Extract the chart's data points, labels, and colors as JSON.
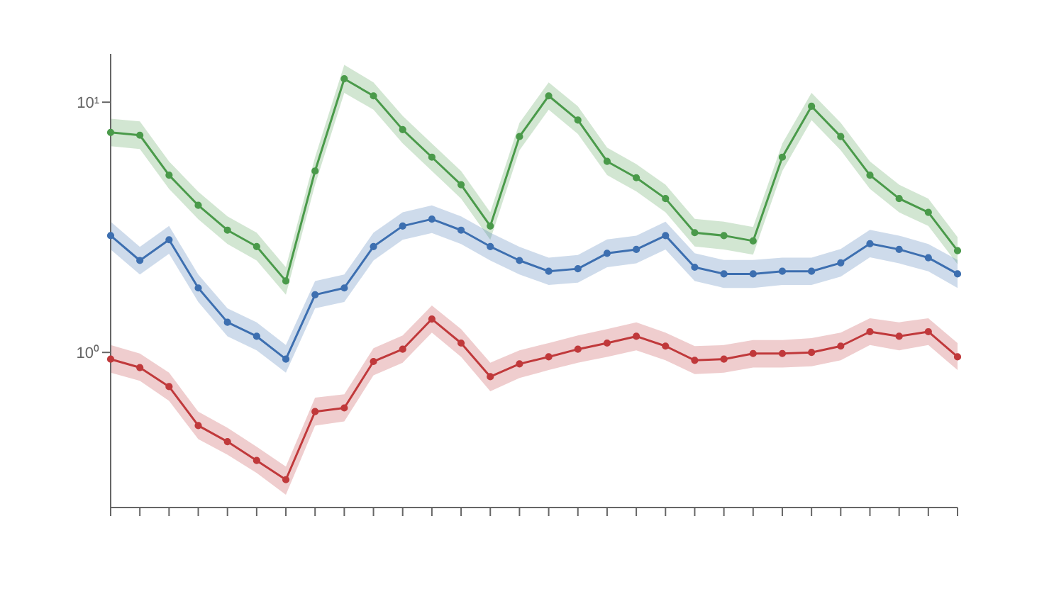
{
  "chart_data": {
    "type": "line",
    "log": "y",
    "grid": false,
    "marker": "circle",
    "line_style": "solid",
    "legend": false,
    "categories": [
      null,
      null,
      null,
      null,
      null,
      null,
      null,
      null,
      null,
      null,
      null,
      null,
      null,
      null,
      null,
      null,
      null,
      null,
      null,
      null,
      null,
      null,
      null,
      null,
      null,
      null,
      null,
      null,
      null,
      null
    ],
    "ylim": [
      0.24,
      15.6
    ],
    "yticks": [
      {
        "value": 1,
        "label": "10⁰"
      },
      {
        "value": 10,
        "label": "10¹"
      }
    ],
    "series": [
      {
        "color": "#4a9a4a",
        "values": [
          7.57,
          7.38,
          5.11,
          3.87,
          3.08,
          2.65,
          1.93,
          5.31,
          12.4,
          10.6,
          7.77,
          6.03,
          4.68,
          3.2,
          7.29,
          10.6,
          8.48,
          5.8,
          4.99,
          4.12,
          3.01,
          2.93,
          2.79,
          6.03,
          9.63,
          7.29,
          5.11,
          4.12,
          3.63,
          2.55
        ],
        "lower": [
          6.67,
          6.5,
          4.5,
          3.41,
          2.71,
          2.33,
          1.7,
          4.68,
          10.9,
          9.34,
          6.85,
          5.31,
          4.12,
          2.82,
          6.42,
          9.34,
          7.47,
          5.11,
          4.4,
          3.63,
          2.65,
          2.58,
          2.46,
          5.31,
          8.48,
          6.42,
          4.5,
          3.63,
          3.2,
          2.25
        ],
        "upper": [
          8.59,
          8.38,
          5.8,
          4.39,
          3.5,
          3.01,
          2.19,
          6.03,
          14.1,
          12,
          8.82,
          6.84,
          5.31,
          3.63,
          8.27,
          12,
          9.62,
          6.58,
          5.66,
          4.68,
          3.42,
          3.33,
          3.17,
          6.84,
          10.9,
          8.27,
          5.8,
          4.68,
          4.12,
          2.89
        ]
      },
      {
        "color": "#3d6fb0",
        "values": [
          2.93,
          2.33,
          2.82,
          1.81,
          1.32,
          1.16,
          0.94,
          1.7,
          1.81,
          2.65,
          3.2,
          3.41,
          3.08,
          2.65,
          2.33,
          2.11,
          2.16,
          2.49,
          2.58,
          2.93,
          2.19,
          2.06,
          2.06,
          2.11,
          2.11,
          2.28,
          2.72,
          2.58,
          2.39,
          2.06
        ],
        "lower": [
          2.58,
          2.05,
          2.48,
          1.59,
          1.16,
          1.02,
          0.83,
          1.5,
          1.59,
          2.33,
          2.82,
          3,
          2.71,
          2.33,
          2.05,
          1.86,
          1.9,
          2.19,
          2.27,
          2.58,
          1.93,
          1.81,
          1.81,
          1.86,
          1.86,
          2.01,
          2.4,
          2.27,
          2.11,
          1.81
        ],
        "upper": [
          3.33,
          2.64,
          3.2,
          2.05,
          1.5,
          1.32,
          1.07,
          1.93,
          2.05,
          3.01,
          3.63,
          3.87,
          3.5,
          3.01,
          2.64,
          2.39,
          2.45,
          2.83,
          2.93,
          3.33,
          2.49,
          2.34,
          2.34,
          2.39,
          2.39,
          2.59,
          3.09,
          2.93,
          2.71,
          2.34
        ]
      },
      {
        "color": "#c0393b",
        "values": [
          0.94,
          0.87,
          0.73,
          0.51,
          0.44,
          0.37,
          0.31,
          0.58,
          0.6,
          0.92,
          1.03,
          1.36,
          1.09,
          0.8,
          0.9,
          0.96,
          1.03,
          1.09,
          1.16,
          1.06,
          0.93,
          0.94,
          0.99,
          0.99,
          1,
          1.06,
          1.21,
          1.16,
          1.21,
          0.96
        ],
        "lower": [
          0.83,
          0.77,
          0.64,
          0.45,
          0.39,
          0.33,
          0.27,
          0.51,
          0.53,
          0.81,
          0.91,
          1.2,
          0.96,
          0.7,
          0.79,
          0.85,
          0.91,
          0.96,
          1.02,
          0.93,
          0.82,
          0.83,
          0.87,
          0.87,
          0.88,
          0.93,
          1.07,
          1.02,
          1.07,
          0.85
        ],
        "upper": [
          1.07,
          0.99,
          0.83,
          0.58,
          0.5,
          0.42,
          0.35,
          0.66,
          0.68,
          1.04,
          1.17,
          1.54,
          1.24,
          0.91,
          1.02,
          1.09,
          1.17,
          1.24,
          1.32,
          1.2,
          1.06,
          1.07,
          1.12,
          1.12,
          1.14,
          1.2,
          1.37,
          1.32,
          1.37,
          1.09
        ]
      }
    ]
  }
}
